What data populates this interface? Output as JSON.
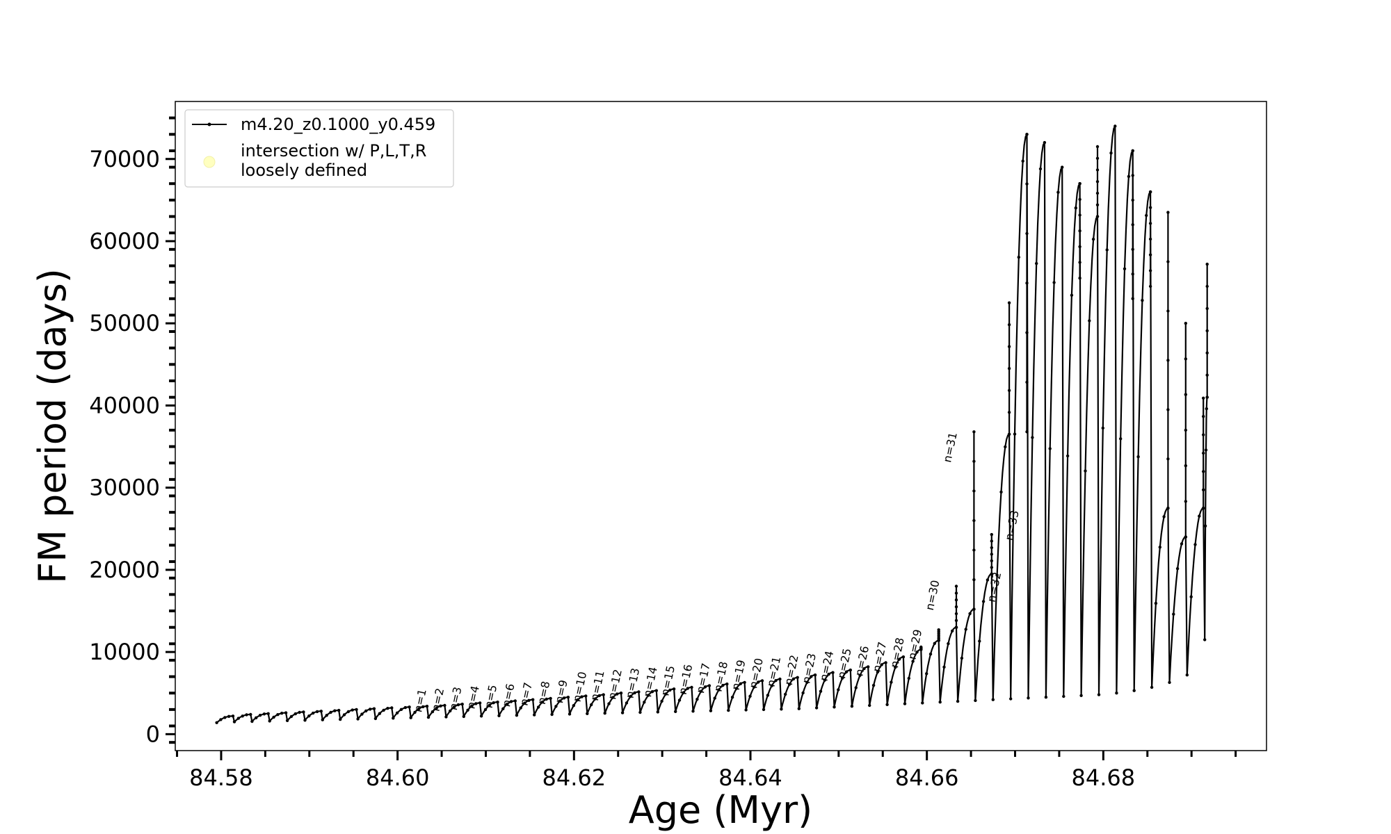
{
  "chart_data": {
    "type": "line",
    "title": "",
    "xlabel": "Age (Myr)",
    "ylabel": "FM period (days)",
    "xlim": [
      84.5748,
      84.6985
    ],
    "ylim": [
      -2000,
      77000
    ],
    "xticks": [
      84.58,
      84.6,
      84.62,
      84.64,
      84.66,
      84.68
    ],
    "xtick_labels": [
      "84.58",
      "84.60",
      "84.62",
      "84.64",
      "84.66",
      "84.68"
    ],
    "yticks": [
      0,
      10000,
      20000,
      30000,
      40000,
      50000,
      60000,
      70000
    ],
    "ytick_labels": [
      "0",
      "10000",
      "20000",
      "30000",
      "40000",
      "50000",
      "60000",
      "70000"
    ],
    "grid": false,
    "legend_position": "top-left",
    "legend": [
      {
        "label": "m4.20_z0.1000_y0.459",
        "style": "line-with-dot",
        "color": "#000000"
      },
      {
        "label_lines": [
          "intersection w/ P,L,T,R",
          "loosely defined"
        ],
        "style": "marker",
        "color": "#ffffc0"
      }
    ],
    "series": [
      {
        "name": "m4.20_z0.1000_y0.459",
        "color": "#000000",
        "pulse_start_x": [
          84.5795,
          84.5815,
          84.5835,
          84.5855,
          84.5875,
          84.5895,
          84.5915,
          84.5935,
          84.5955,
          84.5975,
          84.5995,
          84.6015,
          84.6035,
          84.6055,
          84.6075,
          84.6095,
          84.6115,
          84.6135,
          84.6155,
          84.6175,
          84.6195,
          84.6215,
          84.6235,
          84.6255,
          84.6275,
          84.6295,
          84.6315,
          84.6335,
          84.6355,
          84.6375,
          84.6395,
          84.6415,
          84.6435,
          84.6455,
          84.6475,
          84.6495,
          84.6515,
          84.6535,
          84.6555,
          84.6575,
          84.6595,
          84.6615,
          84.6635,
          84.6655,
          84.6675,
          84.6695,
          84.6715,
          84.6735,
          84.6755,
          84.6775,
          84.6795,
          84.6815,
          84.6835,
          84.6855,
          84.6875,
          84.6895,
          84.6915
        ],
        "pulse_start_y": [
          1400,
          1500,
          1550,
          1600,
          1650,
          1700,
          1750,
          1800,
          1850,
          1900,
          1950,
          2000,
          2050,
          2100,
          2150,
          2200,
          2250,
          2300,
          2350,
          2400,
          2450,
          2500,
          2550,
          2600,
          2650,
          2700,
          2750,
          2800,
          2850,
          2900,
          2950,
          3000,
          3050,
          3100,
          3200,
          3300,
          3400,
          3500,
          3600,
          3700,
          3800,
          3900,
          4000,
          4100,
          4200,
          4300,
          4400,
          4500,
          4600,
          4700,
          4800,
          5000,
          5300,
          5700,
          6300,
          7200,
          11500
        ],
        "pulse_peak_y": [
          2200,
          2400,
          2500,
          2600,
          2700,
          2800,
          2900,
          3000,
          3100,
          3200,
          3300,
          3400,
          3500,
          3650,
          3800,
          3900,
          4050,
          4200,
          4350,
          4500,
          4650,
          4800,
          5000,
          5150,
          5300,
          5500,
          5700,
          5900,
          6100,
          6300,
          6500,
          6700,
          6900,
          7200,
          7500,
          7800,
          8200,
          8700,
          9400,
          10300,
          11400,
          13000,
          15200,
          19500,
          36500,
          73000,
          72000,
          69000,
          67000,
          63000,
          74000,
          71000,
          66000,
          27500,
          24000,
          27500,
          41000
        ],
        "spike_y": [
          null,
          null,
          null,
          null,
          null,
          null,
          null,
          null,
          null,
          null,
          null,
          null,
          null,
          null,
          null,
          null,
          null,
          null,
          null,
          null,
          null,
          null,
          null,
          null,
          null,
          null,
          null,
          null,
          null,
          null,
          null,
          null,
          null,
          null,
          null,
          null,
          null,
          null,
          null,
          10600,
          12700,
          18000,
          36800,
          24300,
          52500,
          36800,
          null,
          null,
          55500,
          71500,
          null,
          53000,
          54500,
          63500,
          50000,
          40900,
          57200
        ]
      }
    ],
    "pulse_labels": [
      {
        "text": "n=1",
        "x": 84.6027,
        "y": 2600
      },
      {
        "text": "n=2",
        "x": 84.6047,
        "y": 2700
      },
      {
        "text": "n=3",
        "x": 84.6067,
        "y": 2850
      },
      {
        "text": "n=4",
        "x": 84.6087,
        "y": 3000
      },
      {
        "text": "n=5",
        "x": 84.6107,
        "y": 3100
      },
      {
        "text": "n=6",
        "x": 84.6127,
        "y": 3250
      },
      {
        "text": "n=7",
        "x": 84.6147,
        "y": 3400
      },
      {
        "text": "n=8",
        "x": 84.6167,
        "y": 3550
      },
      {
        "text": "n=9",
        "x": 84.6187,
        "y": 3700
      },
      {
        "text": "n=10",
        "x": 84.6207,
        "y": 3850
      },
      {
        "text": "n=11",
        "x": 84.6227,
        "y": 4000
      },
      {
        "text": "n=12",
        "x": 84.6247,
        "y": 4150
      },
      {
        "text": "n=13",
        "x": 84.6267,
        "y": 4300
      },
      {
        "text": "n=14",
        "x": 84.6287,
        "y": 4450
      },
      {
        "text": "n=15",
        "x": 84.6307,
        "y": 4600
      },
      {
        "text": "n=16",
        "x": 84.6327,
        "y": 4750
      },
      {
        "text": "n=17",
        "x": 84.6347,
        "y": 4900
      },
      {
        "text": "n=18",
        "x": 84.6367,
        "y": 5100
      },
      {
        "text": "n=19",
        "x": 84.6387,
        "y": 5300
      },
      {
        "text": "n=20",
        "x": 84.6407,
        "y": 5500
      },
      {
        "text": "n=21",
        "x": 84.6427,
        "y": 5700
      },
      {
        "text": "n=22",
        "x": 84.6447,
        "y": 5900
      },
      {
        "text": "n=23",
        "x": 84.6467,
        "y": 6100
      },
      {
        "text": "n=24",
        "x": 84.6487,
        "y": 6400
      },
      {
        "text": "n=25",
        "x": 84.6507,
        "y": 6700
      },
      {
        "text": "n=26",
        "x": 84.6527,
        "y": 7000
      },
      {
        "text": "n=27",
        "x": 84.6547,
        "y": 7500
      },
      {
        "text": "n=28",
        "x": 84.6567,
        "y": 8000
      },
      {
        "text": "n=29",
        "x": 84.6587,
        "y": 9000
      },
      {
        "text": "n=30",
        "x": 84.6607,
        "y": 15000
      },
      {
        "text": "n=31",
        "x": 84.6627,
        "y": 33000
      },
      {
        "text": "n=32",
        "x": 84.6677,
        "y": 16000
      },
      {
        "text": "n=33",
        "x": 84.6697,
        "y": 23500
      }
    ]
  }
}
